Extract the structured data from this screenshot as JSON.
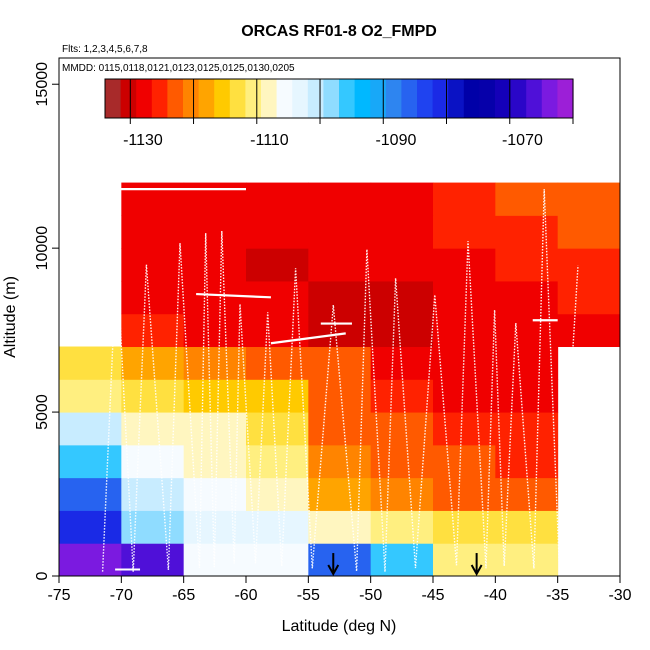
{
  "chart_data": {
    "type": "heatmap",
    "title": "ORCAS RF01-8 O2_FMPD",
    "subtitle_flights": "Flts: 1,2,3,4,5,6,7,8",
    "subtitle_dates": "MMDD: 0115,0118,0121,0123,0125,0125,0130,0205",
    "xlabel": "Latitude (deg N)",
    "ylabel": "Altitude (m)",
    "xlim": [
      -75,
      -30
    ],
    "ylim": [
      0,
      15800
    ],
    "xticks": [
      -75,
      -70,
      -65,
      -60,
      -55,
      -50,
      -45,
      -40,
      -35,
      -30
    ],
    "yticks": [
      0,
      5000,
      10000,
      15000
    ],
    "colorbar": {
      "min": -1136,
      "max": -1062,
      "tick_values": [
        -1130,
        -1110,
        -1090,
        -1070
      ],
      "tick_labels": [
        "-1130",
        "-1110",
        "-1090",
        "-1070"
      ],
      "colors": [
        "#9c1fd7",
        "#7b1ae0",
        "#4f10d8",
        "#2a06c8",
        "#1400b8",
        "#0600aa",
        "#0000a8",
        "#0a12c4",
        "#1a2ae6",
        "#1f43f0",
        "#2763f0",
        "#2e85f0",
        "#18a8f8",
        "#00b8ff",
        "#34c8ff",
        "#8fdcff",
        "#c8ecff",
        "#e6f6ff",
        "#f6fbff",
        "#fff6c0",
        "#ffef80",
        "#ffe040",
        "#ffca00",
        "#ffa400",
        "#ff8400",
        "#ff5a00",
        "#ff2200",
        "#f00000",
        "#cc0000",
        "#a82a2a"
      ]
    },
    "x_bins": [
      -75,
      -70,
      -65,
      -60,
      -55,
      -50,
      -45,
      -40,
      -35,
      -30
    ],
    "y_bins": [
      0,
      1000,
      2000,
      3000,
      4000,
      5000,
      6000,
      7000,
      8000,
      9000,
      10000,
      11000,
      12000
    ],
    "cells": [
      [
        -1066,
        -1068,
        -1108,
        -1108,
        -1087,
        -1097,
        -1112,
        -1112,
        null
      ],
      [
        -1082,
        -1100,
        -1104,
        -1105,
        -1110,
        -1112,
        -1116,
        -1116,
        null
      ],
      [
        -1088,
        -1103,
        -1108,
        -1111,
        -1120,
        -1122,
        -1124,
        -1125,
        null
      ],
      [
        -1098,
        -1107,
        -1110,
        -1112,
        -1122,
        -1124,
        -1126,
        -1127,
        null
      ],
      [
        -1102,
        -1109,
        -1111,
        -1114,
        -1124,
        -1126,
        -1128,
        -1128,
        null
      ],
      [
        -1113,
        -1116,
        -1118,
        -1118,
        -1126,
        -1128,
        -1130,
        -1130,
        null
      ],
      [
        -1115,
        -1120,
        -1122,
        -1124,
        -1126,
        -1129,
        -1130,
        -1131,
        null
      ],
      [
        null,
        -1128,
        -1130,
        -1131,
        -1132,
        -1132,
        -1131,
        -1131,
        -1129
      ],
      [
        null,
        -1129,
        -1130,
        -1131,
        -1132,
        -1132,
        -1130,
        -1129,
        -1128
      ],
      [
        null,
        -1130,
        -1131,
        -1132,
        -1131,
        -1131,
        -1129,
        -1128,
        -1127
      ],
      [
        null,
        -1130,
        -1131,
        -1131,
        -1130,
        -1129,
        -1128,
        -1127,
        -1125
      ],
      [
        null,
        -1131,
        -1131,
        -1130,
        -1130,
        -1129,
        -1127,
        -1126,
        -1124
      ]
    ],
    "arrows_lat": [
      -53,
      -41.5
    ],
    "grid": false,
    "legend": "top (colorbar)"
  }
}
